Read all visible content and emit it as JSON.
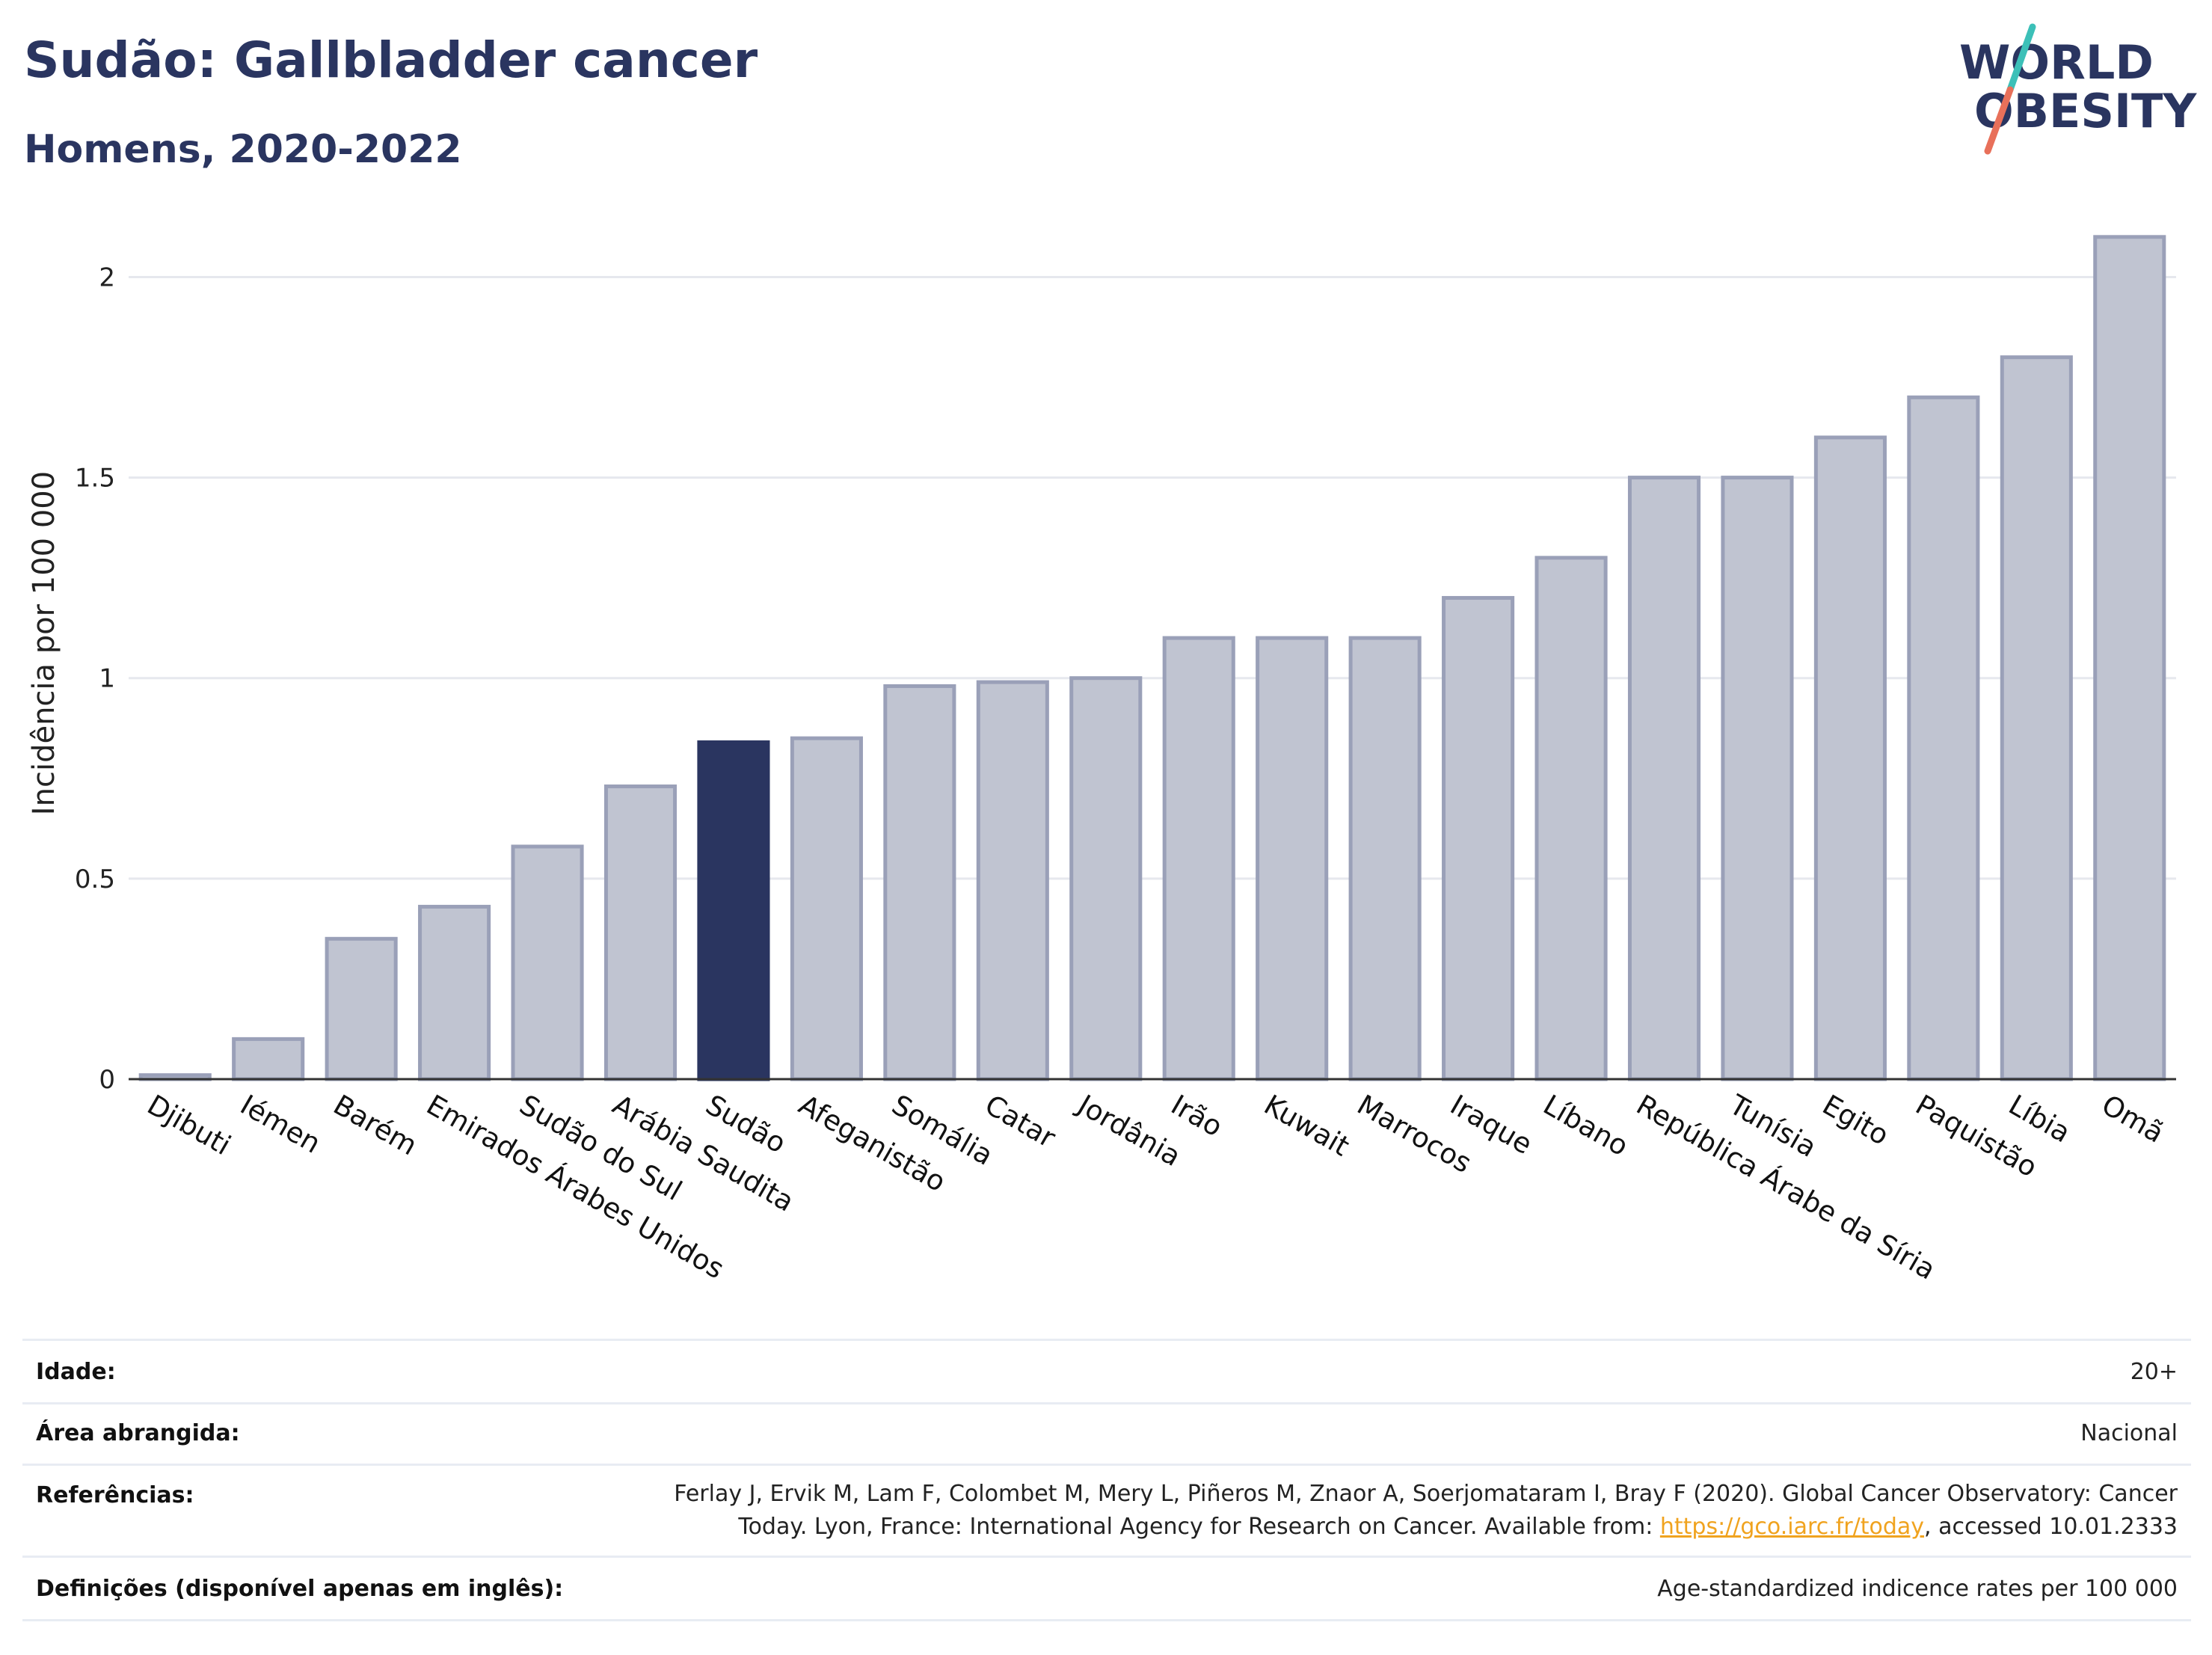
{
  "header": {
    "title": "Sudão: Gallbladder cancer",
    "subtitle": "Homens, 2020-2022"
  },
  "logo": {
    "line1": "WORLD",
    "line2": "OBESITY",
    "slash_colors": [
      "#3cc0b8",
      "#e8705a"
    ]
  },
  "chart_data": {
    "type": "bar",
    "ylabel": "Incidência por 100 000",
    "ylim": [
      0,
      2.15
    ],
    "yticks": [
      0,
      0.5,
      1,
      1.5,
      2
    ],
    "ytick_labels": [
      "0",
      "0.5",
      "1",
      "1.5",
      "2"
    ],
    "grid": true,
    "highlight": "Sudão",
    "colors": {
      "bar": "#c0c4d1",
      "bar_edge": "#9aa0b8",
      "highlight": "#2a3560"
    },
    "categories": [
      "Djibuti",
      "Iémen",
      "Barém",
      "Emirados Árabes Unidos",
      "Sudão do Sul",
      "Arábia Saudita",
      "Sudão",
      "Afeganistão",
      "Somália",
      "Catar",
      "Jordânia",
      "Irão",
      "Kuwait",
      "Marrocos",
      "Iraque",
      "Líbano",
      "República Árabe da Síria",
      "Tunísia",
      "Egito",
      "Paquistão",
      "Líbia",
      "Omã"
    ],
    "values": [
      0.01,
      0.1,
      0.35,
      0.43,
      0.58,
      0.73,
      0.84,
      0.85,
      0.98,
      0.99,
      1.0,
      1.1,
      1.1,
      1.1,
      1.2,
      1.3,
      1.5,
      1.5,
      1.6,
      1.7,
      1.8,
      2.1
    ]
  },
  "info": {
    "age_label": "Idade:",
    "age_value": "20+",
    "area_label": "Área abrangida:",
    "area_value": "Nacional",
    "ref_label": "Referências:",
    "ref_line1": "Ferlay J, Ervik M, Lam F, Colombet M, Mery L, Piñeros M, Znaor A, Soerjomataram I, Bray F (2020). Global Cancer Observatory: Cancer",
    "ref_line2_pre": "Today. Lyon, France: International Agency for Research on Cancer. Available from: ",
    "ref_link": "https://gco.iarc.fr/today",
    "ref_line2_post": ", accessed 10.01.2333",
    "def_label": "Definições (disponível apenas em inglês):",
    "def_value": "Age-standardized indicence rates per 100 000"
  }
}
